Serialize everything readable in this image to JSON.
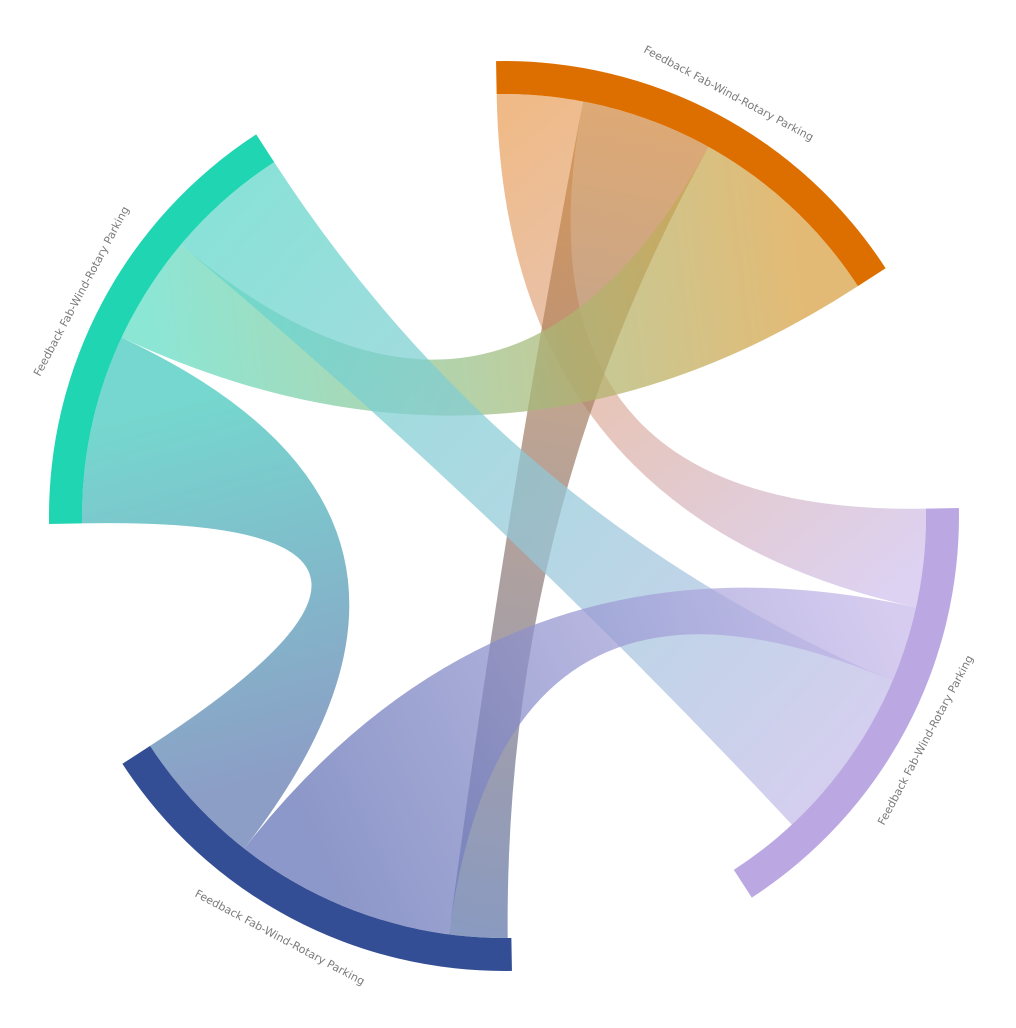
{
  "diagram": {
    "type": "chord",
    "groups": [
      {
        "key": "orange",
        "label": "Feedback Fab-Wind-Rotary Parking",
        "color": "#dd6f00"
      },
      {
        "key": "purple",
        "label": "Feedback Fab-Wind-Rotary Parking",
        "color": "#bba8e2"
      },
      {
        "key": "navy",
        "label": "Feedback Fab-Wind-Rotary Parking",
        "color": "#334e94"
      },
      {
        "key": "teal",
        "label": "Feedback Fab-Wind-Rotary Parking",
        "color": "#1fd5b2"
      }
    ],
    "links": [
      {
        "source": "orange",
        "target": "purple",
        "from_color": "#e9a05a",
        "to_color": "#d0c0ec"
      },
      {
        "source": "orange",
        "target": "navy",
        "from_color": "#d08840",
        "to_color": "#5c73a8"
      },
      {
        "source": "orange",
        "target": "teal",
        "from_color": "#d8a040",
        "to_color": "#60dcc4"
      },
      {
        "source": "teal",
        "target": "purple",
        "from_color": "#5cd6c8",
        "to_color": "#c4bce8"
      },
      {
        "source": "teal",
        "target": "navy",
        "from_color": "#40c8bc",
        "to_color": "#6078b0"
      },
      {
        "source": "purple",
        "target": "navy",
        "from_color": "#c6b8ea",
        "to_color": "#6070b4"
      }
    ]
  }
}
